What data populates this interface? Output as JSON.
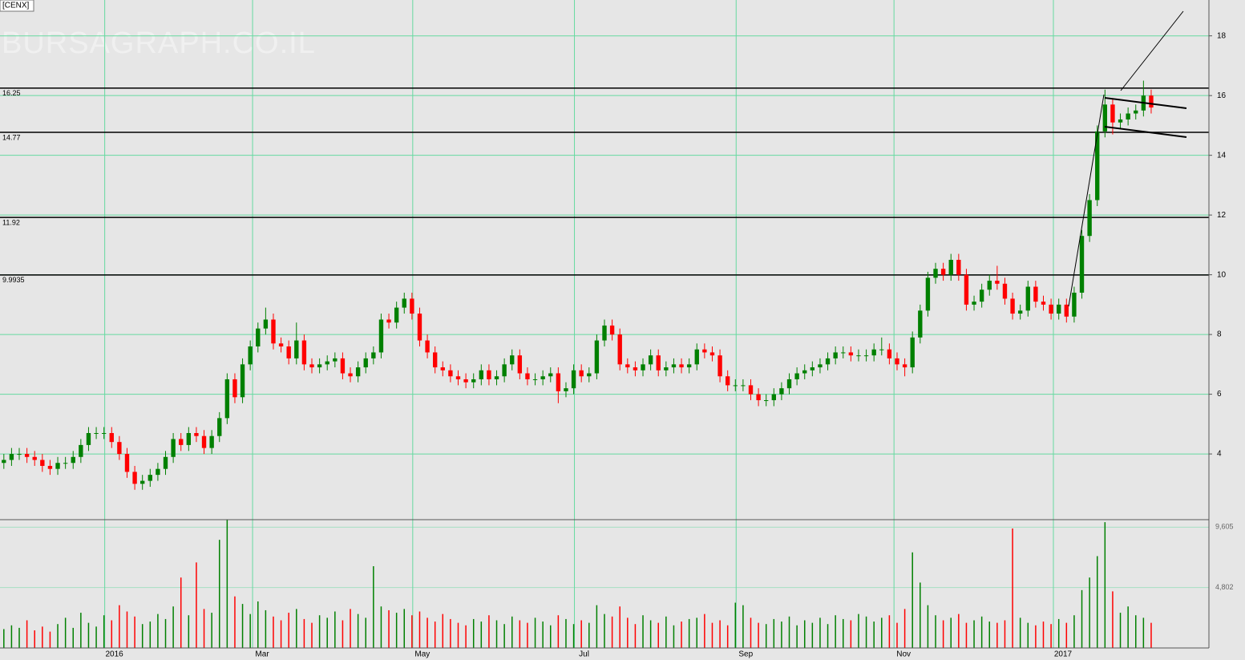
{
  "chart_data": [
    {
      "type": "candlestick",
      "title": "[CENX]",
      "watermark": "BURSAGRAPH.CO.IL",
      "up_color": "#008000",
      "down_color": "#ff0000",
      "grid": true,
      "grid_color": "#66d9a0",
      "ylim": [
        1.8,
        19.2
      ],
      "yticks": [
        4,
        6,
        8,
        10,
        12,
        14,
        16,
        18
      ],
      "xlim": [
        0,
        157
      ],
      "xticks": [
        {
          "value": 13.6,
          "label": "2016"
        },
        {
          "value": 32.8,
          "label": "Mar"
        },
        {
          "value": 53.6,
          "label": "May"
        },
        {
          "value": 74.6,
          "label": "Jul"
        },
        {
          "value": 95.6,
          "label": "Sep"
        },
        {
          "value": 116.1,
          "label": "Nov"
        },
        {
          "value": 136.8,
          "label": "2017"
        }
      ],
      "levels": [
        16.25,
        14.77,
        11.92,
        9.9935
      ],
      "open": [
        3.7,
        3.8,
        4.0,
        4.0,
        3.9,
        3.8,
        3.6,
        3.5,
        3.7,
        3.7,
        3.9,
        4.3,
        4.7,
        4.7,
        4.7,
        4.4,
        4.0,
        3.4,
        3.0,
        3.1,
        3.3,
        3.5,
        3.9,
        4.5,
        4.3,
        4.7,
        4.6,
        4.2,
        4.6,
        5.2,
        6.5,
        5.9,
        7.0,
        7.6,
        8.2,
        8.5,
        7.7,
        7.6,
        7.2,
        7.8,
        7.0,
        6.9,
        7.0,
        7.1,
        7.2,
        6.7,
        6.6,
        6.9,
        7.2,
        7.4,
        8.5,
        8.4,
        8.9,
        9.2,
        8.7,
        7.8,
        7.4,
        6.9,
        6.8,
        6.6,
        6.5,
        6.4,
        6.5,
        6.8,
        6.5,
        6.6,
        7.0,
        7.3,
        6.7,
        6.5,
        6.5,
        6.6,
        6.7,
        6.1,
        6.2,
        6.8,
        6.6,
        6.7,
        7.8,
        8.3,
        8.0,
        7.0,
        6.9,
        6.8,
        7.0,
        7.3,
        6.8,
        6.9,
        7.0,
        6.9,
        7.0,
        7.5,
        7.4,
        7.3,
        6.6,
        6.3,
        6.3,
        6.3,
        6.0,
        5.8,
        5.8,
        6.0,
        6.2,
        6.5,
        6.7,
        6.8,
        6.9,
        7.0,
        7.2,
        7.4,
        7.4,
        7.3,
        7.3,
        7.3,
        7.5,
        7.5,
        7.2,
        7.0,
        6.9,
        7.9,
        8.8,
        9.9,
        10.2,
        10.0,
        10.5,
        10.0,
        9.0,
        9.1,
        9.5,
        9.8,
        9.7,
        9.2,
        8.7,
        8.8,
        9.6,
        9.1,
        9.0,
        8.7,
        9.0,
        8.6,
        9.4,
        11.3,
        12.5,
        14.8,
        15.7,
        15.1,
        15.2,
        15.4,
        15.5,
        16.0
      ],
      "high": [
        4.0,
        4.2,
        4.2,
        4.2,
        4.1,
        4.0,
        3.8,
        3.9,
        3.9,
        4.1,
        4.5,
        4.9,
        4.9,
        4.9,
        4.9,
        4.6,
        4.2,
        3.6,
        3.3,
        3.5,
        3.7,
        4.1,
        4.7,
        4.7,
        4.9,
        4.9,
        4.8,
        4.8,
        5.4,
        6.7,
        6.7,
        7.2,
        7.8,
        8.4,
        8.9,
        8.7,
        7.9,
        7.8,
        8.4,
        8.0,
        7.2,
        7.2,
        7.3,
        7.4,
        7.4,
        6.9,
        7.1,
        7.4,
        7.6,
        8.7,
        8.7,
        9.1,
        9.4,
        9.4,
        8.9,
        8.0,
        7.6,
        7.1,
        7.0,
        6.8,
        6.7,
        6.7,
        7.0,
        7.0,
        6.8,
        7.2,
        7.5,
        7.5,
        6.9,
        6.7,
        6.8,
        6.9,
        6.9,
        6.4,
        7.0,
        7.0,
        6.9,
        8.0,
        8.5,
        8.5,
        8.2,
        7.2,
        7.1,
        7.2,
        7.5,
        7.5,
        7.1,
        7.2,
        7.2,
        7.2,
        7.7,
        7.7,
        7.6,
        7.5,
        6.8,
        6.5,
        6.5,
        6.5,
        6.2,
        6.0,
        6.2,
        6.4,
        6.7,
        6.9,
        7.0,
        7.1,
        7.2,
        7.4,
        7.6,
        7.6,
        7.6,
        7.5,
        7.5,
        7.7,
        7.9,
        7.7,
        7.4,
        7.2,
        8.1,
        9.0,
        10.1,
        10.4,
        10.4,
        10.7,
        10.7,
        10.2,
        9.3,
        9.7,
        10.0,
        10.3,
        9.9,
        9.4,
        9.0,
        9.8,
        9.8,
        9.3,
        9.2,
        9.2,
        9.2,
        9.6,
        11.5,
        12.7,
        15.0,
        16.2,
        15.9,
        15.4,
        15.6,
        15.7,
        16.5,
        16.2
      ],
      "low": [
        3.5,
        3.6,
        3.8,
        3.7,
        3.6,
        3.4,
        3.3,
        3.3,
        3.5,
        3.5,
        3.7,
        4.1,
        4.5,
        4.5,
        4.2,
        3.8,
        3.2,
        2.8,
        2.8,
        2.9,
        3.1,
        3.3,
        3.7,
        4.1,
        4.1,
        4.4,
        4.0,
        4.0,
        4.4,
        5.0,
        5.7,
        5.7,
        6.8,
        7.4,
        8.0,
        7.5,
        7.4,
        7.0,
        7.0,
        6.8,
        6.7,
        6.7,
        6.8,
        6.9,
        6.5,
        6.4,
        6.4,
        6.7,
        7.0,
        7.2,
        8.2,
        8.2,
        8.7,
        8.5,
        7.6,
        7.2,
        6.7,
        6.6,
        6.4,
        6.3,
        6.2,
        6.2,
        6.3,
        6.3,
        6.3,
        6.4,
        6.8,
        6.5,
        6.3,
        6.3,
        6.3,
        6.4,
        5.7,
        5.9,
        6.0,
        6.4,
        6.4,
        6.5,
        7.6,
        7.8,
        6.8,
        6.7,
        6.6,
        6.6,
        6.8,
        6.6,
        6.6,
        6.7,
        6.7,
        6.7,
        6.8,
        7.2,
        7.1,
        6.4,
        6.1,
        6.1,
        6.1,
        5.8,
        5.6,
        5.6,
        5.6,
        5.8,
        6.0,
        6.3,
        6.5,
        6.6,
        6.7,
        6.8,
        7.0,
        7.2,
        7.1,
        7.1,
        7.1,
        7.1,
        7.3,
        7.0,
        6.8,
        6.6,
        6.7,
        7.7,
        8.6,
        9.7,
        9.8,
        9.8,
        9.8,
        8.8,
        8.8,
        8.9,
        9.3,
        9.5,
        9.0,
        8.5,
        8.5,
        8.6,
        8.9,
        8.8,
        8.5,
        8.5,
        8.4,
        8.4,
        9.2,
        11.1,
        12.3,
        14.6,
        14.7,
        14.9,
        15.0,
        15.2,
        15.3,
        15.4
      ],
      "close": [
        3.8,
        4.0,
        4.0,
        3.9,
        3.8,
        3.6,
        3.5,
        3.7,
        3.7,
        3.9,
        4.3,
        4.7,
        4.7,
        4.7,
        4.4,
        4.0,
        3.4,
        3.0,
        3.1,
        3.3,
        3.5,
        3.9,
        4.5,
        4.3,
        4.7,
        4.6,
        4.2,
        4.6,
        5.2,
        6.5,
        5.9,
        7.0,
        7.6,
        8.2,
        8.5,
        7.7,
        7.6,
        7.2,
        7.8,
        7.0,
        6.9,
        7.0,
        7.1,
        7.2,
        6.7,
        6.6,
        6.9,
        7.2,
        7.4,
        8.5,
        8.4,
        8.9,
        9.2,
        8.7,
        7.8,
        7.4,
        6.9,
        6.8,
        6.6,
        6.5,
        6.4,
        6.5,
        6.8,
        6.5,
        6.6,
        7.0,
        7.3,
        6.7,
        6.5,
        6.5,
        6.6,
        6.7,
        6.1,
        6.2,
        6.8,
        6.6,
        6.7,
        7.8,
        8.3,
        8.0,
        7.0,
        6.9,
        6.8,
        7.0,
        7.3,
        6.8,
        6.9,
        7.0,
        6.9,
        7.0,
        7.5,
        7.4,
        7.3,
        6.6,
        6.3,
        6.3,
        6.3,
        6.0,
        5.8,
        5.8,
        6.0,
        6.2,
        6.5,
        6.7,
        6.8,
        6.9,
        7.0,
        7.2,
        7.4,
        7.4,
        7.3,
        7.3,
        7.3,
        7.5,
        7.5,
        7.2,
        7.0,
        6.9,
        7.9,
        8.8,
        9.9,
        10.2,
        10.0,
        10.5,
        10.0,
        9.0,
        9.1,
        9.5,
        9.8,
        9.7,
        9.2,
        8.7,
        8.8,
        9.6,
        9.1,
        9.0,
        8.7,
        9.0,
        8.6,
        9.4,
        11.3,
        12.5,
        14.8,
        15.7,
        15.1,
        15.2,
        15.4,
        15.5,
        16.0,
        15.6
      ]
    },
    {
      "type": "volume",
      "ylim": [
        0,
        10200
      ],
      "yticks": [
        {
          "value": 4802,
          "label": "4,802"
        },
        {
          "value": 9605,
          "label": "9,605"
        }
      ],
      "values": [
        1500,
        1800,
        1600,
        2200,
        1400,
        1700,
        1300,
        1900,
        2400,
        1600,
        2800,
        2000,
        1700,
        2600,
        2200,
        3400,
        2900,
        2500,
        1900,
        2100,
        2700,
        2300,
        3300,
        5600,
        2600,
        6800,
        3100,
        2800,
        8600,
        10200,
        4100,
        3500,
        2700,
        3700,
        3000,
        2500,
        2200,
        2800,
        3100,
        2300,
        2000,
        2600,
        2400,
        2900,
        2200,
        3100,
        2700,
        2400,
        6500,
        3300,
        3000,
        2800,
        3100,
        2600,
        2900,
        2400,
        2100,
        2700,
        2300,
        2000,
        1800,
        2300,
        2100,
        2600,
        2200,
        1900,
        2500,
        2200,
        2000,
        2400,
        2100,
        1800,
        2600,
        2300,
        1900,
        2200,
        2000,
        3400,
        2700,
        2500,
        3300,
        2400,
        1900,
        2600,
        2200,
        2000,
        2500,
        1800,
        2100,
        2300,
        2400,
        2700,
        2000,
        2200,
        1800,
        3600,
        3400,
        2400,
        2000,
        1900,
        2300,
        2100,
        2500,
        1800,
        2200,
        2000,
        2400,
        1900,
        2600,
        2300,
        2200,
        2700,
        2500,
        2100,
        2400,
        2600,
        2000,
        3100,
        7600,
        5200,
        3400,
        2600,
        2200,
        2400,
        2700,
        2000,
        2200,
        2500,
        2100,
        2000,
        2200,
        9500,
        2400,
        2000,
        1800,
        2100,
        1900,
        2300,
        2000,
        2600,
        4600,
        5600,
        7300,
        10000,
        4500,
        2800,
        3300,
        2600,
        2400,
        2000
      ]
    }
  ]
}
